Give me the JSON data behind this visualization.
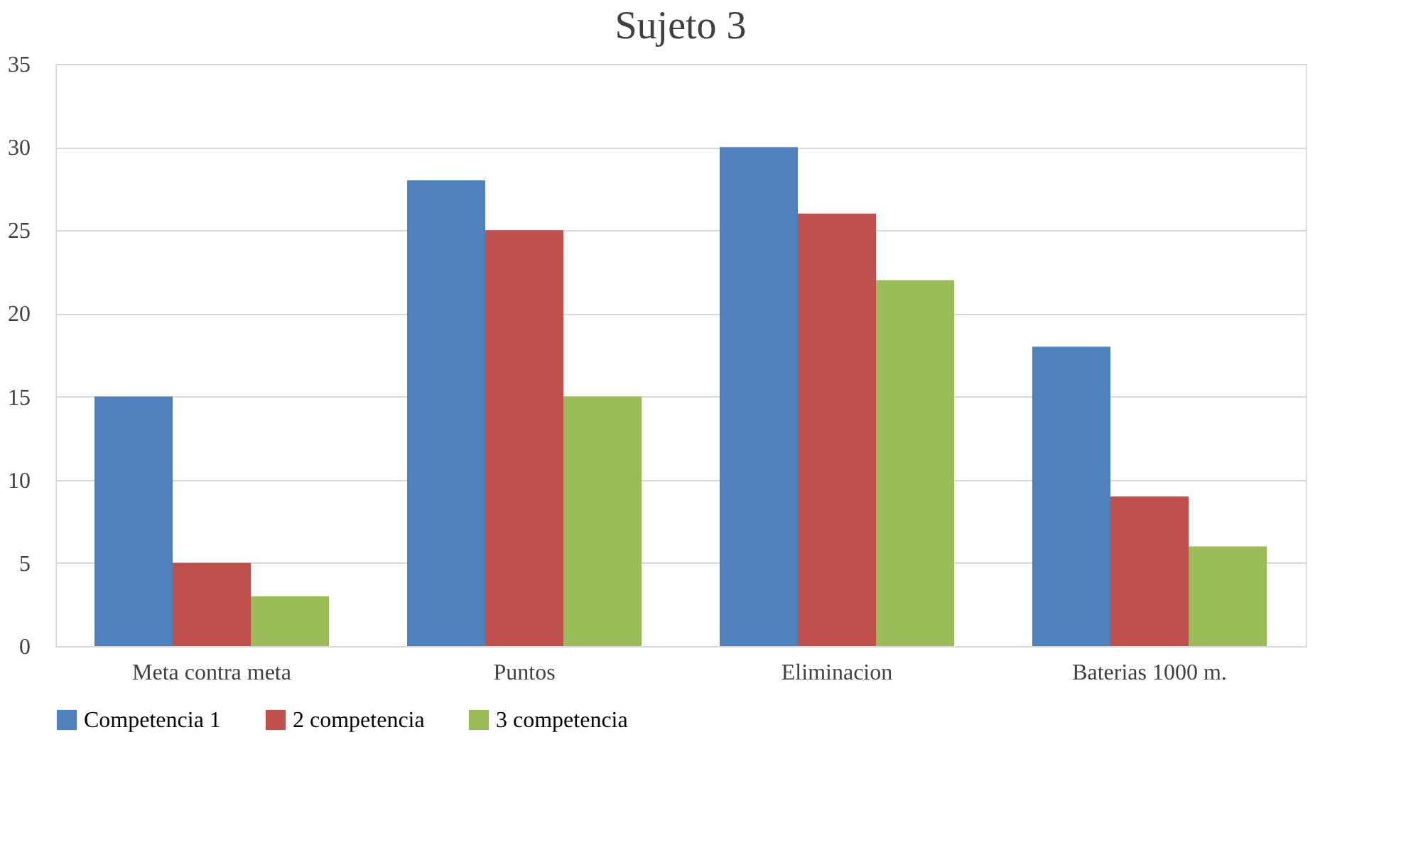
{
  "chart_data": {
    "type": "bar",
    "title": "Sujeto 3",
    "categories": [
      "Meta contra meta",
      "Puntos",
      "Eliminacion",
      "Baterias 1000 m."
    ],
    "series": [
      {
        "name": "Competencia 1",
        "color": "#4f81bd",
        "values": [
          15,
          28,
          30,
          18
        ]
      },
      {
        "name": "2 competencia",
        "color": "#c0504d",
        "values": [
          5,
          25,
          26,
          9
        ]
      },
      {
        "name": "3 competencia",
        "color": "#9bbb59",
        "values": [
          3,
          15,
          22,
          6
        ]
      }
    ],
    "ylim": [
      0,
      35
    ],
    "yticks": [
      0,
      5,
      10,
      15,
      20,
      25,
      30,
      35
    ],
    "grid": "y",
    "legend": "bottom"
  }
}
